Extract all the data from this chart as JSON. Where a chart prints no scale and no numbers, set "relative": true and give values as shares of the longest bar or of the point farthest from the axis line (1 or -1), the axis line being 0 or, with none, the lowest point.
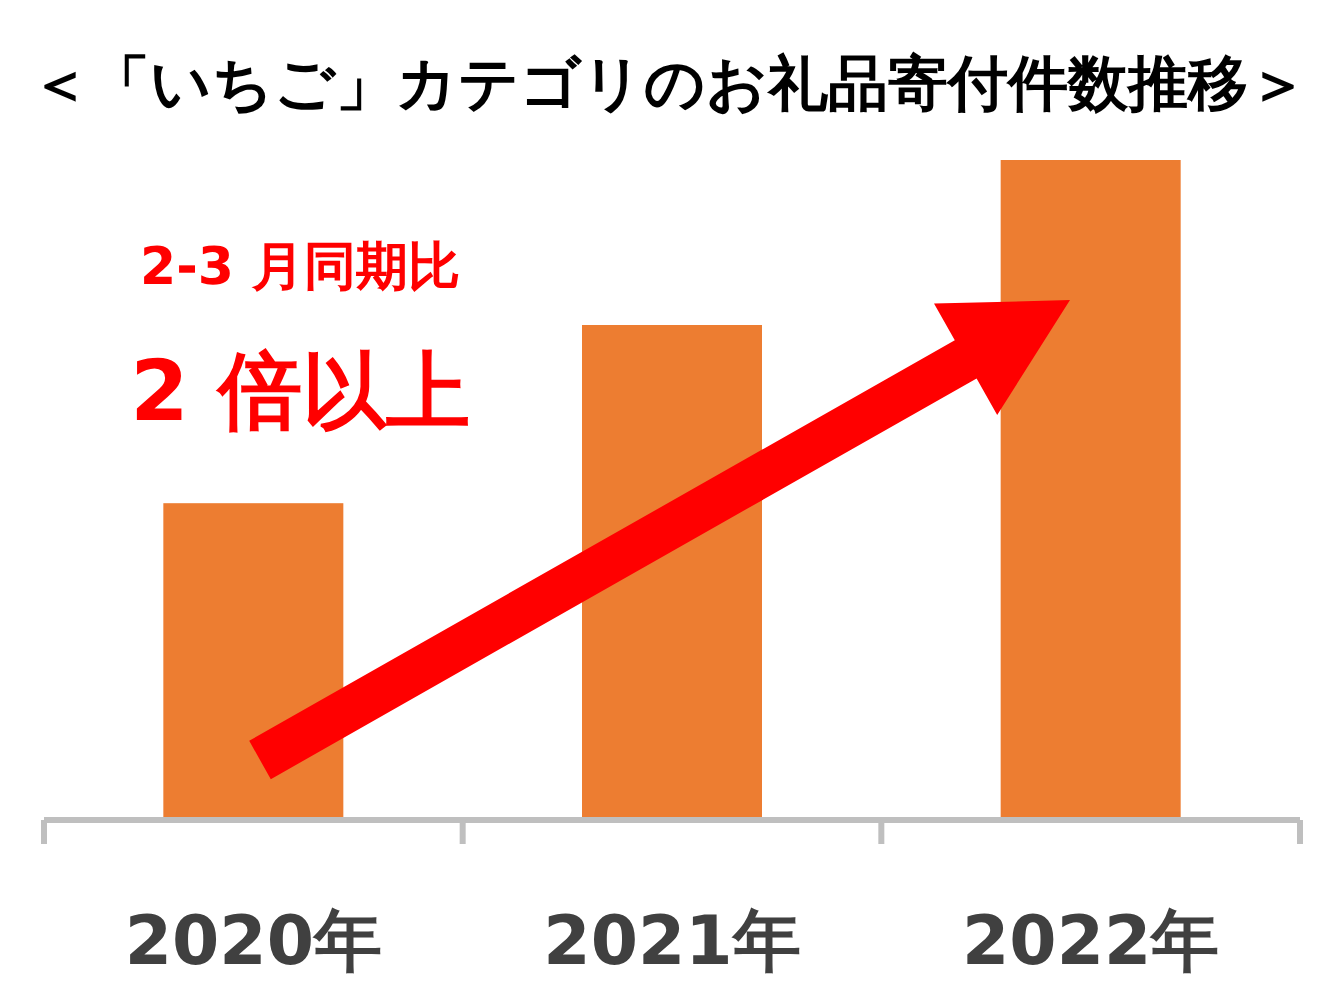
{
  "chart_data": {
    "type": "bar",
    "title": "＜「いちご」カテゴリのお礼品寄付件数推移＞",
    "categories": [
      "2020年",
      "2021年",
      "2022年"
    ],
    "values": [
      0.48,
      0.75,
      1
    ],
    "color": "#ed7d31",
    "relative": true,
    "annotations": [
      "2-3 月同期比",
      "2 倍以上"
    ]
  }
}
